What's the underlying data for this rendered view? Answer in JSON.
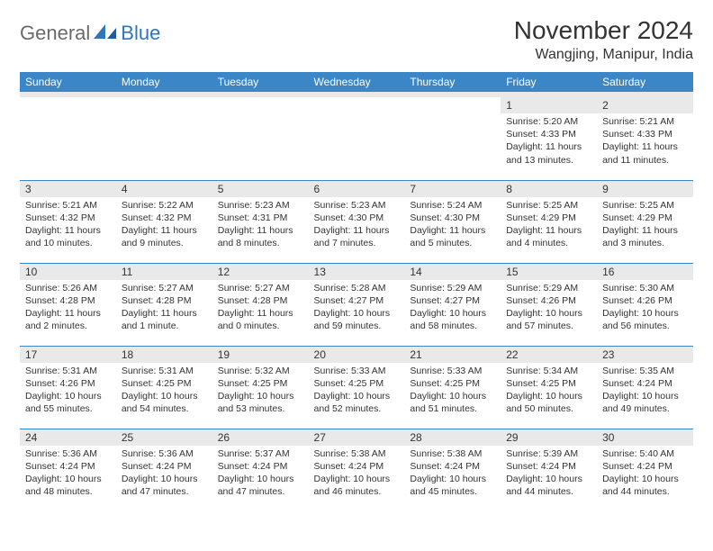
{
  "brand": {
    "general": "General",
    "blue": "Blue"
  },
  "header": {
    "month_title": "November 2024",
    "location": "Wangjing, Manipur, India"
  },
  "colors": {
    "header_bg": "#3b86c6",
    "header_fg": "#ffffff",
    "daynum_bg": "#e9e9e9",
    "row_divider": "#3b86c6",
    "logo_gray": "#6a6a6a",
    "logo_blue": "#2f77bb"
  },
  "day_labels": [
    "Sunday",
    "Monday",
    "Tuesday",
    "Wednesday",
    "Thursday",
    "Friday",
    "Saturday"
  ],
  "weeks": [
    [
      null,
      null,
      null,
      null,
      null,
      {
        "n": "1",
        "sr": "Sunrise: 5:20 AM",
        "ss": "Sunset: 4:33 PM",
        "dl1": "Daylight: 11 hours",
        "dl2": "and 13 minutes."
      },
      {
        "n": "2",
        "sr": "Sunrise: 5:21 AM",
        "ss": "Sunset: 4:33 PM",
        "dl1": "Daylight: 11 hours",
        "dl2": "and 11 minutes."
      }
    ],
    [
      {
        "n": "3",
        "sr": "Sunrise: 5:21 AM",
        "ss": "Sunset: 4:32 PM",
        "dl1": "Daylight: 11 hours",
        "dl2": "and 10 minutes."
      },
      {
        "n": "4",
        "sr": "Sunrise: 5:22 AM",
        "ss": "Sunset: 4:32 PM",
        "dl1": "Daylight: 11 hours",
        "dl2": "and 9 minutes."
      },
      {
        "n": "5",
        "sr": "Sunrise: 5:23 AM",
        "ss": "Sunset: 4:31 PM",
        "dl1": "Daylight: 11 hours",
        "dl2": "and 8 minutes."
      },
      {
        "n": "6",
        "sr": "Sunrise: 5:23 AM",
        "ss": "Sunset: 4:30 PM",
        "dl1": "Daylight: 11 hours",
        "dl2": "and 7 minutes."
      },
      {
        "n": "7",
        "sr": "Sunrise: 5:24 AM",
        "ss": "Sunset: 4:30 PM",
        "dl1": "Daylight: 11 hours",
        "dl2": "and 5 minutes."
      },
      {
        "n": "8",
        "sr": "Sunrise: 5:25 AM",
        "ss": "Sunset: 4:29 PM",
        "dl1": "Daylight: 11 hours",
        "dl2": "and 4 minutes."
      },
      {
        "n": "9",
        "sr": "Sunrise: 5:25 AM",
        "ss": "Sunset: 4:29 PM",
        "dl1": "Daylight: 11 hours",
        "dl2": "and 3 minutes."
      }
    ],
    [
      {
        "n": "10",
        "sr": "Sunrise: 5:26 AM",
        "ss": "Sunset: 4:28 PM",
        "dl1": "Daylight: 11 hours",
        "dl2": "and 2 minutes."
      },
      {
        "n": "11",
        "sr": "Sunrise: 5:27 AM",
        "ss": "Sunset: 4:28 PM",
        "dl1": "Daylight: 11 hours",
        "dl2": "and 1 minute."
      },
      {
        "n": "12",
        "sr": "Sunrise: 5:27 AM",
        "ss": "Sunset: 4:28 PM",
        "dl1": "Daylight: 11 hours",
        "dl2": "and 0 minutes."
      },
      {
        "n": "13",
        "sr": "Sunrise: 5:28 AM",
        "ss": "Sunset: 4:27 PM",
        "dl1": "Daylight: 10 hours",
        "dl2": "and 59 minutes."
      },
      {
        "n": "14",
        "sr": "Sunrise: 5:29 AM",
        "ss": "Sunset: 4:27 PM",
        "dl1": "Daylight: 10 hours",
        "dl2": "and 58 minutes."
      },
      {
        "n": "15",
        "sr": "Sunrise: 5:29 AM",
        "ss": "Sunset: 4:26 PM",
        "dl1": "Daylight: 10 hours",
        "dl2": "and 57 minutes."
      },
      {
        "n": "16",
        "sr": "Sunrise: 5:30 AM",
        "ss": "Sunset: 4:26 PM",
        "dl1": "Daylight: 10 hours",
        "dl2": "and 56 minutes."
      }
    ],
    [
      {
        "n": "17",
        "sr": "Sunrise: 5:31 AM",
        "ss": "Sunset: 4:26 PM",
        "dl1": "Daylight: 10 hours",
        "dl2": "and 55 minutes."
      },
      {
        "n": "18",
        "sr": "Sunrise: 5:31 AM",
        "ss": "Sunset: 4:25 PM",
        "dl1": "Daylight: 10 hours",
        "dl2": "and 54 minutes."
      },
      {
        "n": "19",
        "sr": "Sunrise: 5:32 AM",
        "ss": "Sunset: 4:25 PM",
        "dl1": "Daylight: 10 hours",
        "dl2": "and 53 minutes."
      },
      {
        "n": "20",
        "sr": "Sunrise: 5:33 AM",
        "ss": "Sunset: 4:25 PM",
        "dl1": "Daylight: 10 hours",
        "dl2": "and 52 minutes."
      },
      {
        "n": "21",
        "sr": "Sunrise: 5:33 AM",
        "ss": "Sunset: 4:25 PM",
        "dl1": "Daylight: 10 hours",
        "dl2": "and 51 minutes."
      },
      {
        "n": "22",
        "sr": "Sunrise: 5:34 AM",
        "ss": "Sunset: 4:25 PM",
        "dl1": "Daylight: 10 hours",
        "dl2": "and 50 minutes."
      },
      {
        "n": "23",
        "sr": "Sunrise: 5:35 AM",
        "ss": "Sunset: 4:24 PM",
        "dl1": "Daylight: 10 hours",
        "dl2": "and 49 minutes."
      }
    ],
    [
      {
        "n": "24",
        "sr": "Sunrise: 5:36 AM",
        "ss": "Sunset: 4:24 PM",
        "dl1": "Daylight: 10 hours",
        "dl2": "and 48 minutes."
      },
      {
        "n": "25",
        "sr": "Sunrise: 5:36 AM",
        "ss": "Sunset: 4:24 PM",
        "dl1": "Daylight: 10 hours",
        "dl2": "and 47 minutes."
      },
      {
        "n": "26",
        "sr": "Sunrise: 5:37 AM",
        "ss": "Sunset: 4:24 PM",
        "dl1": "Daylight: 10 hours",
        "dl2": "and 47 minutes."
      },
      {
        "n": "27",
        "sr": "Sunrise: 5:38 AM",
        "ss": "Sunset: 4:24 PM",
        "dl1": "Daylight: 10 hours",
        "dl2": "and 46 minutes."
      },
      {
        "n": "28",
        "sr": "Sunrise: 5:38 AM",
        "ss": "Sunset: 4:24 PM",
        "dl1": "Daylight: 10 hours",
        "dl2": "and 45 minutes."
      },
      {
        "n": "29",
        "sr": "Sunrise: 5:39 AM",
        "ss": "Sunset: 4:24 PM",
        "dl1": "Daylight: 10 hours",
        "dl2": "and 44 minutes."
      },
      {
        "n": "30",
        "sr": "Sunrise: 5:40 AM",
        "ss": "Sunset: 4:24 PM",
        "dl1": "Daylight: 10 hours",
        "dl2": "and 44 minutes."
      }
    ]
  ]
}
